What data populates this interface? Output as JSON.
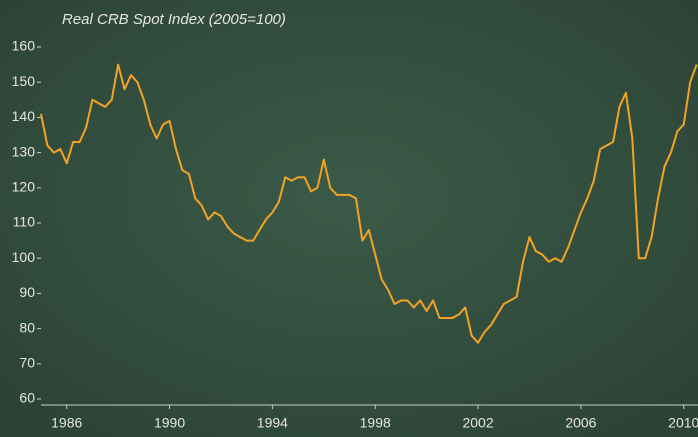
{
  "chart_data": {
    "type": "line",
    "title": "Real CRB Spot Index (2005=100)",
    "color": "#f2a324",
    "x": [
      1985,
      1985.25,
      1985.5,
      1985.75,
      1986,
      1986.25,
      1986.5,
      1986.75,
      1987,
      1987.25,
      1987.5,
      1987.75,
      1988,
      1988.25,
      1988.5,
      1988.75,
      1989,
      1989.25,
      1989.5,
      1989.75,
      1990,
      1990.25,
      1990.5,
      1990.75,
      1991,
      1991.25,
      1991.5,
      1991.75,
      1992,
      1992.25,
      1992.5,
      1992.75,
      1993,
      1993.25,
      1993.5,
      1993.75,
      1994,
      1994.25,
      1994.5,
      1994.75,
      1995,
      1995.25,
      1995.5,
      1995.75,
      1996,
      1996.25,
      1996.5,
      1996.75,
      1997,
      1997.25,
      1997.5,
      1997.75,
      1998,
      1998.25,
      1998.5,
      1998.75,
      1999,
      1999.25,
      1999.5,
      1999.75,
      2000,
      2000.25,
      2000.5,
      2000.75,
      2001,
      2001.25,
      2001.5,
      2001.75,
      2002,
      2002.25,
      2002.5,
      2002.75,
      2003,
      2003.25,
      2003.5,
      2003.75,
      2004,
      2004.25,
      2004.5,
      2004.75,
      2005,
      2005.25,
      2005.5,
      2005.75,
      2006,
      2006.25,
      2006.5,
      2006.75,
      2007,
      2007.25,
      2007.5,
      2007.75,
      2008,
      2008.25,
      2008.5,
      2008.75,
      2009,
      2009.25,
      2009.5,
      2009.75,
      2010,
      2010.25,
      2010.5
    ],
    "values": [
      141,
      132,
      130,
      131,
      127,
      133,
      133,
      137,
      145,
      144,
      143,
      145,
      155,
      148,
      152,
      150,
      145,
      138,
      134,
      138,
      139,
      131,
      125,
      124,
      117,
      115,
      111,
      113,
      112,
      109,
      107,
      106,
      105,
      105,
      108,
      111,
      113,
      116,
      123,
      122,
      123,
      123,
      119,
      120,
      128,
      120,
      118,
      118,
      118,
      117,
      105,
      108,
      101,
      94,
      91,
      87,
      88,
      88,
      86,
      88,
      85,
      88,
      83,
      83,
      83,
      84,
      86,
      78,
      76,
      79,
      81,
      84,
      87,
      88,
      89,
      99,
      106,
      102,
      101,
      99,
      100,
      99,
      103,
      108,
      113,
      117,
      122,
      131,
      132,
      133,
      143,
      147,
      134,
      100,
      100,
      106,
      117,
      126,
      130,
      136,
      138,
      150,
      155
    ],
    "xlim": [
      1985,
      2010.5
    ],
    "xticks": [
      1986,
      1990,
      1994,
      1998,
      2002,
      2006,
      2010
    ],
    "ylim": [
      60,
      160
    ],
    "yticks": [
      60,
      70,
      80,
      90,
      100,
      110,
      120,
      130,
      140,
      150,
      160
    ]
  }
}
